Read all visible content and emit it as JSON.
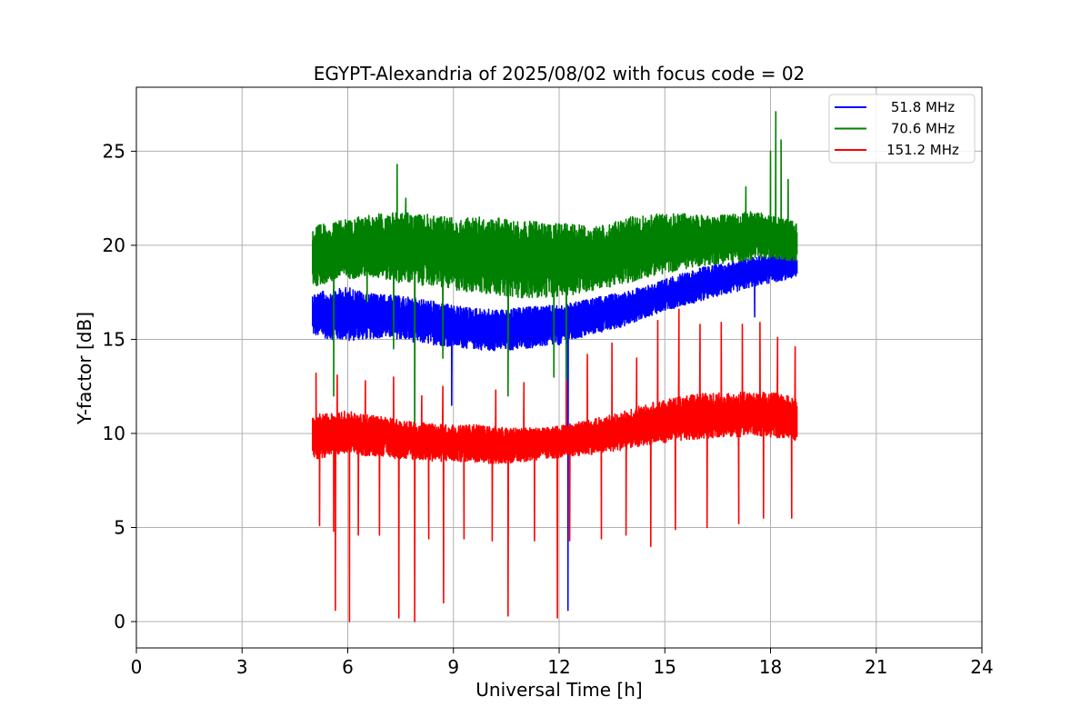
{
  "chart_data": {
    "type": "line",
    "title": "EGYPT-Alexandria of 2025/08/02 with focus code = 02",
    "xlabel": "Universal Time [h]",
    "ylabel": "Y-factor [dB]",
    "xlim": [
      0,
      24
    ],
    "ylim": [
      -1.4,
      28.4
    ],
    "x_ticks": [
      0,
      3,
      6,
      9,
      12,
      15,
      18,
      21,
      24
    ],
    "y_ticks": [
      0,
      5,
      10,
      15,
      20,
      25
    ],
    "grid": true,
    "legend_position": "top-right",
    "series": [
      {
        "name": "51.8 MHz",
        "color": "#0000ff",
        "x": [
          5.0,
          5.5,
          6.0,
          6.5,
          7.0,
          7.5,
          8.0,
          8.5,
          9.0,
          9.5,
          10.0,
          10.5,
          11.0,
          11.5,
          12.0,
          12.5,
          13.0,
          13.5,
          14.0,
          14.5,
          15.0,
          15.5,
          16.0,
          16.5,
          17.0,
          17.5,
          18.0,
          18.5,
          18.75
        ],
        "low": [
          15.2,
          15.0,
          14.9,
          15.0,
          15.1,
          15.0,
          14.8,
          14.7,
          14.6,
          14.5,
          14.4,
          14.4,
          14.5,
          14.6,
          14.7,
          15.0,
          15.3,
          15.5,
          15.8,
          16.2,
          16.5,
          16.8,
          17.0,
          17.3,
          17.5,
          17.8,
          18.0,
          18.2,
          18.3
        ],
        "high": [
          17.5,
          17.6,
          17.8,
          17.5,
          17.4,
          17.3,
          17.2,
          17.0,
          16.8,
          16.7,
          16.6,
          16.6,
          16.7,
          16.8,
          16.8,
          17.0,
          17.2,
          17.4,
          17.6,
          17.9,
          18.2,
          18.5,
          18.8,
          19.0,
          19.2,
          19.4,
          19.6,
          19.5,
          19.4
        ]
      },
      {
        "name": "70.6 MHz",
        "color": "#008000",
        "x": [
          5.0,
          5.5,
          6.0,
          6.5,
          7.0,
          7.5,
          8.0,
          8.5,
          9.0,
          9.5,
          10.0,
          10.5,
          11.0,
          11.5,
          12.0,
          12.5,
          13.0,
          13.5,
          14.0,
          14.5,
          15.0,
          15.5,
          16.0,
          16.5,
          17.0,
          17.5,
          18.0,
          18.5,
          18.75
        ],
        "low": [
          17.8,
          18.0,
          18.2,
          18.3,
          18.2,
          18.0,
          17.9,
          17.8,
          17.6,
          17.5,
          17.4,
          17.3,
          17.2,
          17.2,
          17.3,
          17.4,
          17.6,
          17.8,
          18.0,
          18.3,
          18.5,
          18.7,
          18.9,
          19.0,
          19.1,
          19.2,
          19.3,
          19.2,
          19.1
        ],
        "high": [
          21.0,
          21.2,
          21.4,
          21.6,
          21.7,
          21.8,
          21.7,
          21.6,
          21.5,
          21.5,
          21.5,
          21.4,
          21.3,
          21.3,
          21.2,
          21.1,
          21.0,
          21.2,
          21.5,
          21.6,
          21.7,
          21.7,
          21.6,
          21.6,
          21.7,
          21.8,
          21.6,
          21.4,
          21.2
        ]
      },
      {
        "name": "151.2 MHz",
        "color": "#ff0000",
        "x": [
          5.0,
          5.5,
          6.0,
          6.5,
          7.0,
          7.5,
          8.0,
          8.5,
          9.0,
          9.5,
          10.0,
          10.5,
          11.0,
          11.5,
          12.0,
          12.5,
          13.0,
          13.5,
          14.0,
          14.5,
          15.0,
          15.5,
          16.0,
          16.5,
          17.0,
          17.5,
          18.0,
          18.5,
          18.75
        ],
        "low": [
          8.6,
          8.8,
          8.9,
          8.8,
          8.8,
          8.6,
          8.6,
          8.5,
          8.5,
          8.5,
          8.4,
          8.4,
          8.5,
          8.6,
          8.7,
          8.8,
          8.9,
          9.0,
          9.2,
          9.4,
          9.5,
          9.6,
          9.7,
          9.8,
          9.8,
          9.9,
          9.8,
          9.7,
          9.6
        ],
        "high": [
          11.0,
          11.1,
          11.2,
          11.0,
          10.9,
          10.7,
          10.6,
          10.5,
          10.5,
          10.5,
          10.4,
          10.3,
          10.3,
          10.3,
          10.4,
          10.6,
          10.8,
          11.0,
          11.3,
          11.6,
          11.8,
          12.0,
          12.1,
          12.2,
          12.2,
          12.2,
          12.2,
          12.0,
          11.8
        ],
        "spikes": [
          [
            5.1,
            13.2
          ],
          [
            5.7,
            13.1
          ],
          [
            6.5,
            12.8
          ],
          [
            7.3,
            13.0
          ],
          [
            8.1,
            12.0
          ],
          [
            8.7,
            12.5
          ],
          [
            10.2,
            12.3
          ],
          [
            11.0,
            12.7
          ],
          [
            12.2,
            12.8
          ],
          [
            12.8,
            14.2
          ],
          [
            13.5,
            14.8
          ],
          [
            14.2,
            14.0
          ],
          [
            14.8,
            16.0
          ],
          [
            15.4,
            16.6
          ],
          [
            16.0,
            15.8
          ],
          [
            16.6,
            15.9
          ],
          [
            17.2,
            15.8
          ],
          [
            17.7,
            15.9
          ],
          [
            18.2,
            15.1
          ],
          [
            18.7,
            14.6
          ]
        ],
        "dips": [
          [
            5.2,
            5.1
          ],
          [
            5.6,
            4.8
          ],
          [
            5.65,
            0.6
          ],
          [
            6.05,
            0.0
          ],
          [
            6.3,
            4.6
          ],
          [
            6.9,
            4.6
          ],
          [
            7.45,
            0.2
          ],
          [
            7.9,
            0.0
          ],
          [
            8.3,
            4.4
          ],
          [
            8.72,
            1.0
          ],
          [
            9.3,
            4.4
          ],
          [
            10.1,
            4.3
          ],
          [
            10.55,
            0.3
          ],
          [
            11.3,
            4.3
          ],
          [
            11.95,
            0.2
          ],
          [
            12.3,
            4.3
          ],
          [
            13.2,
            4.4
          ],
          [
            13.9,
            4.6
          ],
          [
            14.6,
            4.0
          ],
          [
            15.3,
            4.9
          ],
          [
            16.2,
            5.0
          ],
          [
            17.1,
            5.2
          ],
          [
            17.8,
            5.5
          ],
          [
            18.6,
            5.5
          ]
        ]
      }
    ],
    "dropouts": [
      {
        "series": 1,
        "x": 5.6,
        "y": 12.0
      },
      {
        "series": 1,
        "x": 6.55,
        "y": 17.0
      },
      {
        "series": 1,
        "x": 7.3,
        "y": 14.5
      },
      {
        "series": 1,
        "x": 7.9,
        "y": 9.5
      },
      {
        "series": 1,
        "x": 8.7,
        "y": 14.0
      },
      {
        "series": 1,
        "x": 10.55,
        "y": 12.0
      },
      {
        "series": 1,
        "x": 11.85,
        "y": 13.0
      },
      {
        "series": 1,
        "x": 12.2,
        "y": 11.0
      },
      {
        "series": 0,
        "x": 8.95,
        "y": 11.5
      },
      {
        "series": 0,
        "x": 12.25,
        "y": 0.6
      },
      {
        "series": 0,
        "x": 17.55,
        "y": 16.2
      }
    ],
    "peaks": [
      {
        "series": 1,
        "x": 7.4,
        "y": 24.3
      },
      {
        "series": 1,
        "x": 7.65,
        "y": 22.5
      },
      {
        "series": 1,
        "x": 17.3,
        "y": 23.1
      },
      {
        "series": 1,
        "x": 18.0,
        "y": 25.0
      },
      {
        "series": 1,
        "x": 18.15,
        "y": 27.1
      },
      {
        "series": 1,
        "x": 18.3,
        "y": 25.6
      },
      {
        "series": 1,
        "x": 18.5,
        "y": 23.5
      }
    ]
  }
}
